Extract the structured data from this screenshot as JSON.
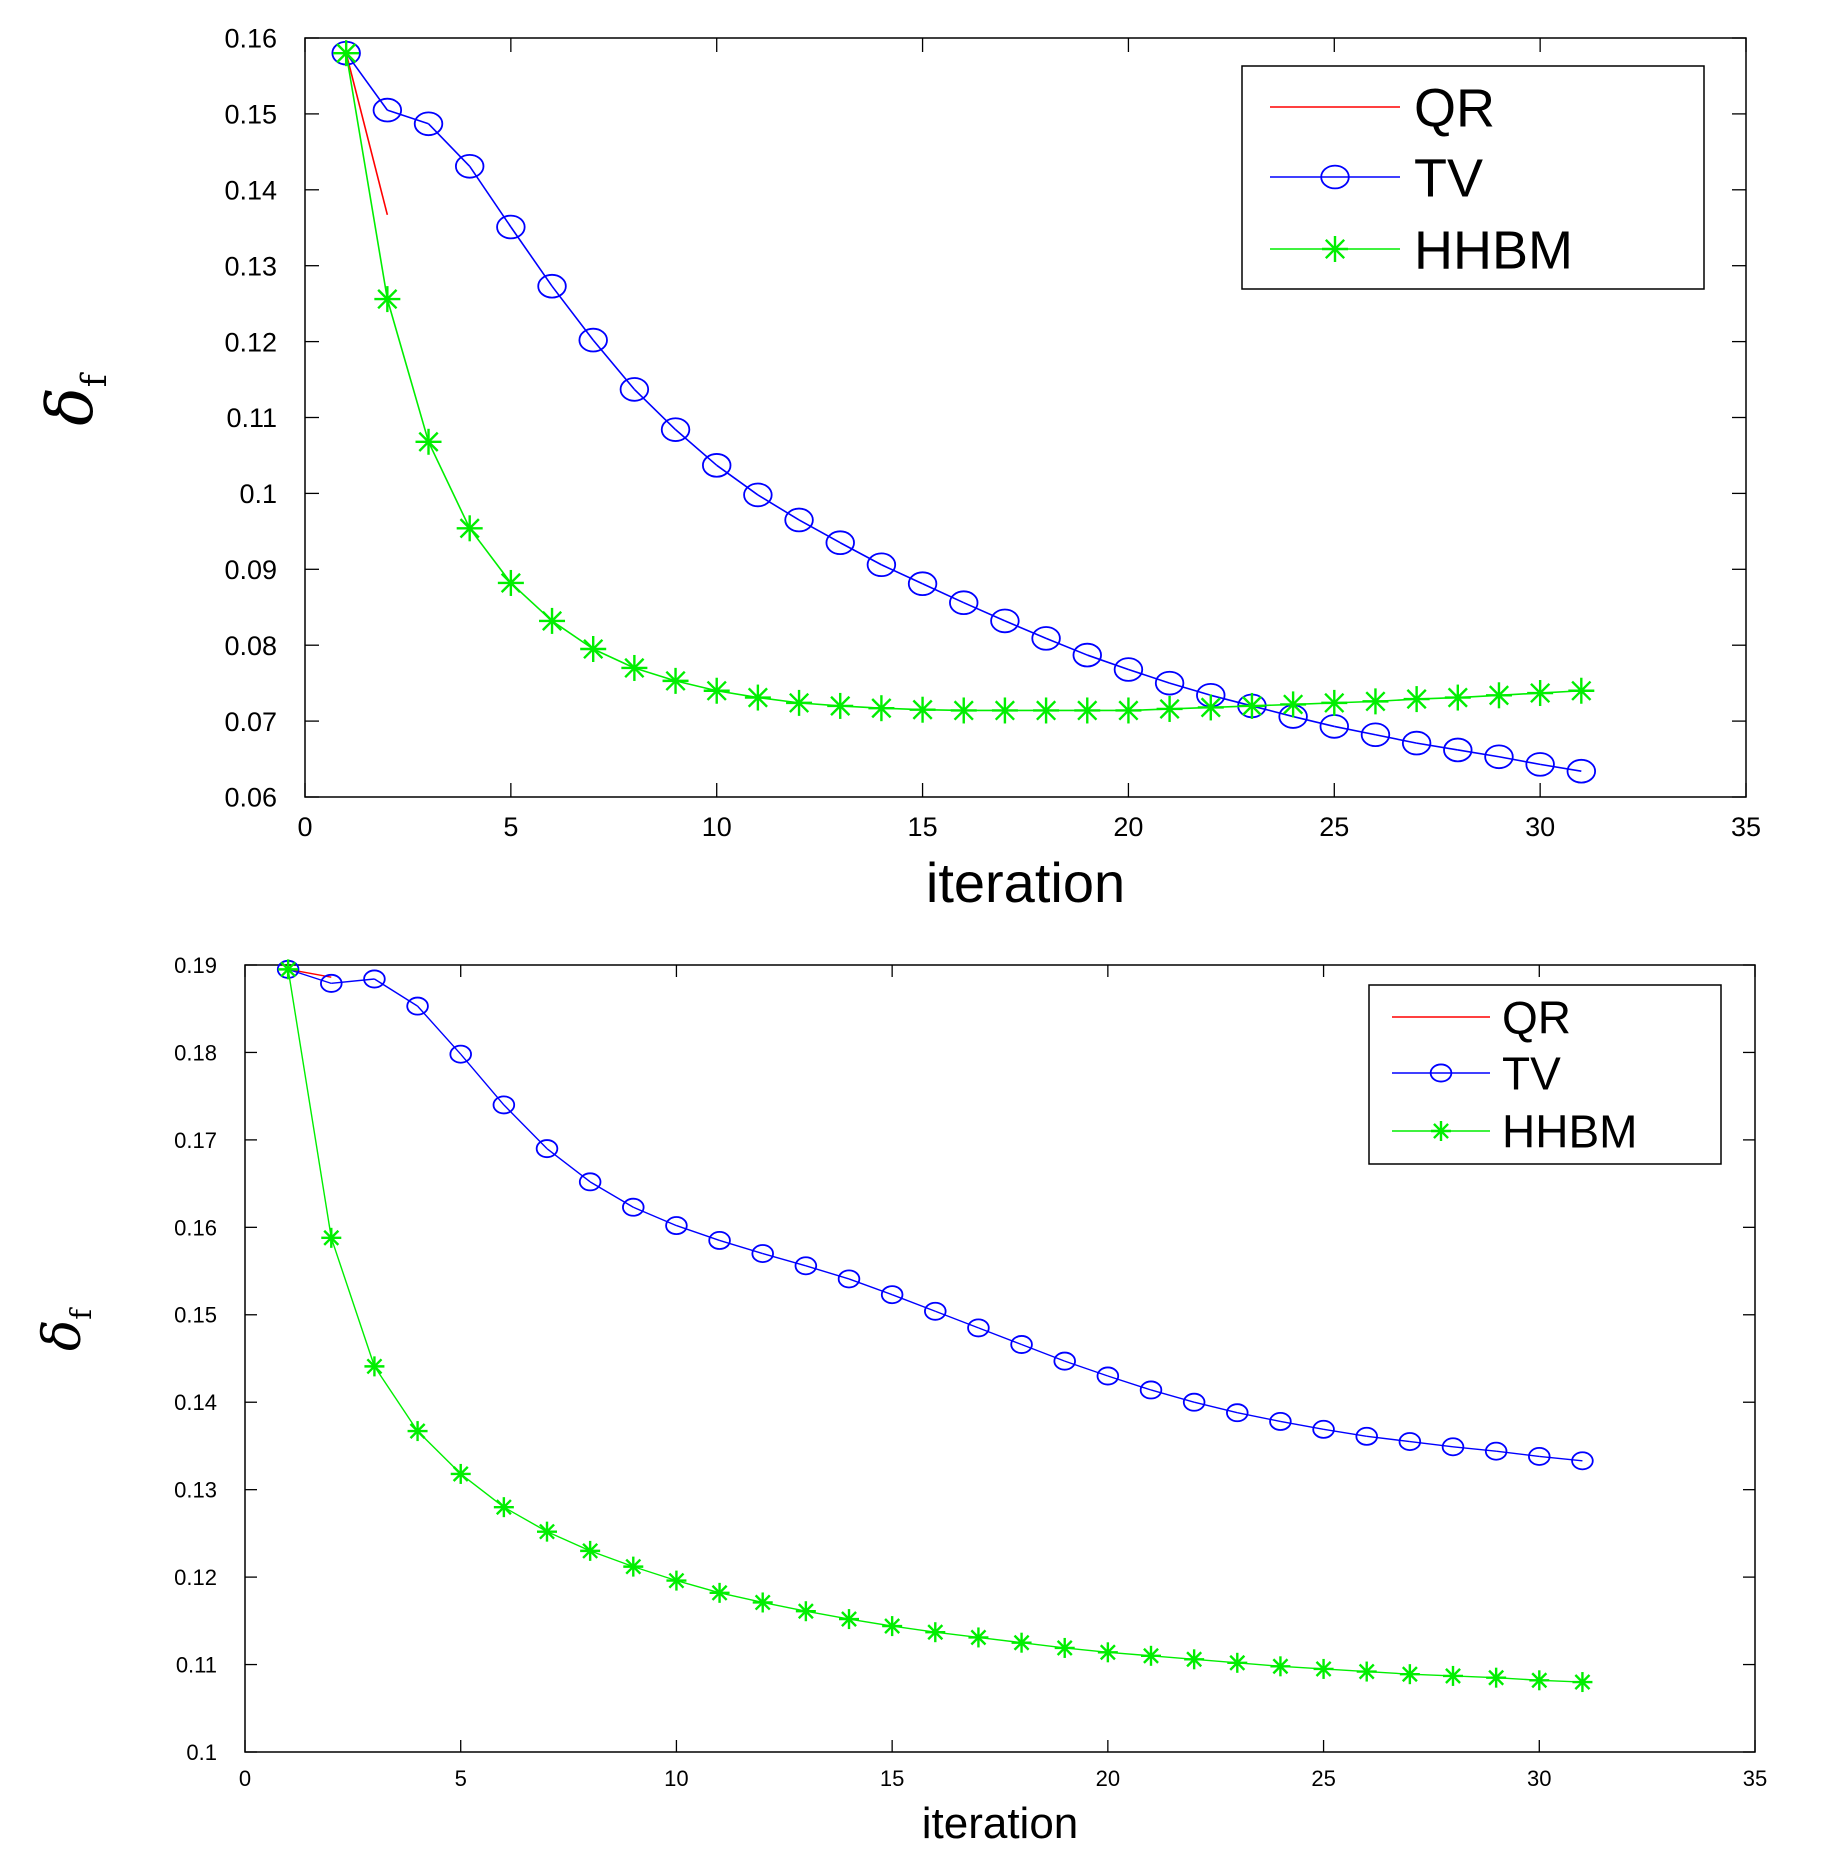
{
  "chart_data": [
    {
      "type": "line",
      "xlabel": "iteration",
      "ylabel": "δ",
      "ylabel_sub": "f",
      "xlim": [
        0,
        35
      ],
      "ylim": [
        0.06,
        0.16
      ],
      "xticks": [
        0,
        5,
        10,
        15,
        20,
        25,
        30,
        35
      ],
      "xtick_labels": [
        "0",
        "5",
        "10",
        "15",
        "20",
        "25",
        "30",
        "35"
      ],
      "yticks": [
        0.06,
        0.07,
        0.08,
        0.09,
        0.1,
        0.11,
        0.12,
        0.13,
        0.14,
        0.15,
        0.16
      ],
      "ytick_labels": [
        "0.06",
        "0.07",
        "0.08",
        "0.09",
        "0.1",
        "0.11",
        "0.12",
        "0.13",
        "0.14",
        "0.15",
        "0.16"
      ],
      "grid": false,
      "legend_position": "top-right",
      "series": [
        {
          "name": "QR",
          "color": "#ff0000",
          "marker": "none",
          "x": [
            1,
            2
          ],
          "y": [
            0.158,
            0.1367
          ]
        },
        {
          "name": "TV",
          "color": "#0000ff",
          "marker": "circle",
          "x": [
            1,
            2,
            3,
            4,
            5,
            6,
            7,
            8,
            9,
            10,
            11,
            12,
            13,
            14,
            15,
            16,
            17,
            18,
            19,
            20,
            21,
            22,
            23,
            24,
            25,
            26,
            27,
            28,
            29,
            30,
            31
          ],
          "y": [
            0.158,
            0.1505,
            0.1487,
            0.1431,
            0.1351,
            0.1273,
            0.1202,
            0.1137,
            0.1084,
            0.1037,
            0.0998,
            0.0965,
            0.0935,
            0.0906,
            0.0881,
            0.0856,
            0.0832,
            0.0809,
            0.0787,
            0.0768,
            0.075,
            0.0734,
            0.072,
            0.0706,
            0.0693,
            0.0682,
            0.0671,
            0.0662,
            0.0653,
            0.0643,
            0.0634
          ]
        },
        {
          "name": "HHBM",
          "color": "#00ee00",
          "marker": "star",
          "x": [
            1,
            2,
            3,
            4,
            5,
            6,
            7,
            8,
            9,
            10,
            11,
            12,
            13,
            14,
            15,
            16,
            17,
            18,
            19,
            20,
            21,
            22,
            23,
            24,
            25,
            26,
            27,
            28,
            29,
            30,
            31
          ],
          "y": [
            0.158,
            0.1256,
            0.1068,
            0.0954,
            0.0882,
            0.0832,
            0.0795,
            0.077,
            0.0753,
            0.074,
            0.0731,
            0.0724,
            0.072,
            0.0717,
            0.0715,
            0.0714,
            0.0714,
            0.0714,
            0.0714,
            0.0714,
            0.0716,
            0.0718,
            0.072,
            0.0722,
            0.0724,
            0.0726,
            0.0729,
            0.0731,
            0.0734,
            0.0737,
            0.074
          ]
        }
      ]
    },
    {
      "type": "line",
      "xlabel": "iteration",
      "ylabel": "δ",
      "ylabel_sub": "f",
      "xlim": [
        0,
        35
      ],
      "ylim": [
        0.1,
        0.19
      ],
      "xticks": [
        0,
        5,
        10,
        15,
        20,
        25,
        30,
        35
      ],
      "xtick_labels": [
        "0",
        "5",
        "10",
        "15",
        "20",
        "25",
        "30",
        "35"
      ],
      "yticks": [
        0.1,
        0.11,
        0.12,
        0.13,
        0.14,
        0.15,
        0.16,
        0.17,
        0.18,
        0.19
      ],
      "ytick_labels": [
        "0.1",
        "0.11",
        "0.12",
        "0.13",
        "0.14",
        "0.15",
        "0.16",
        "0.17",
        "0.18",
        "0.19"
      ],
      "grid": false,
      "legend_position": "top-right",
      "series": [
        {
          "name": "QR",
          "color": "#ff0000",
          "marker": "none",
          "x": [
            1,
            2
          ],
          "y": [
            0.1895,
            0.1886
          ]
        },
        {
          "name": "TV",
          "color": "#0000ff",
          "marker": "circle",
          "x": [
            1,
            2,
            3,
            4,
            5,
            6,
            7,
            8,
            9,
            10,
            11,
            12,
            13,
            14,
            15,
            16,
            17,
            18,
            19,
            20,
            21,
            22,
            23,
            24,
            25,
            26,
            27,
            28,
            29,
            30,
            31
          ],
          "y": [
            0.1895,
            0.1879,
            0.1884,
            0.1853,
            0.1798,
            0.174,
            0.169,
            0.1652,
            0.1623,
            0.1602,
            0.1585,
            0.157,
            0.1556,
            0.1541,
            0.1523,
            0.1504,
            0.1485,
            0.1466,
            0.1447,
            0.143,
            0.1414,
            0.14,
            0.1388,
            0.1378,
            0.1369,
            0.1361,
            0.1355,
            0.1349,
            0.1344,
            0.1338,
            0.1333
          ]
        },
        {
          "name": "HHBM",
          "color": "#00ee00",
          "marker": "star",
          "x": [
            1,
            2,
            3,
            4,
            5,
            6,
            7,
            8,
            9,
            10,
            11,
            12,
            13,
            14,
            15,
            16,
            17,
            18,
            19,
            20,
            21,
            22,
            23,
            24,
            25,
            26,
            27,
            28,
            29,
            30,
            31
          ],
          "y": [
            0.1895,
            0.1588,
            0.1441,
            0.1367,
            0.1318,
            0.128,
            0.1252,
            0.123,
            0.1212,
            0.1196,
            0.1182,
            0.1171,
            0.1161,
            0.1152,
            0.1144,
            0.1137,
            0.1131,
            0.1125,
            0.1119,
            0.1114,
            0.111,
            0.1106,
            0.1102,
            0.1098,
            0.1095,
            0.1092,
            0.1089,
            0.1087,
            0.1085,
            0.1082,
            0.108
          ]
        }
      ]
    }
  ]
}
